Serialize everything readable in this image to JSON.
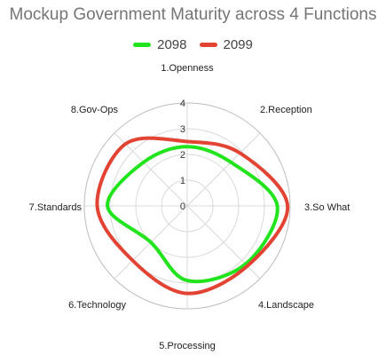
{
  "chart_data": {
    "type": "radar",
    "title": "Mockup Government Maturity across 4 Functions",
    "categories": [
      "1.Openness",
      "2.Reception",
      "3.So What",
      "4.Landscape",
      "5.Processing",
      "6.Technology",
      "7.Standards",
      "8.Gov-Ops"
    ],
    "rlim": [
      0,
      4
    ],
    "ticks": [
      "0",
      "1",
      "2",
      "3",
      "4"
    ],
    "grid": true,
    "legend_position": "top-center",
    "series": [
      {
        "name": "2098",
        "color": "#22e41e",
        "values": [
          2.3,
          2.4,
          3.5,
          3.2,
          2.9,
          2.0,
          3.1,
          2.4
        ]
      },
      {
        "name": "2099",
        "color": "#e24333",
        "values": [
          2.5,
          2.9,
          3.9,
          3.3,
          3.4,
          3.0,
          3.5,
          3.4
        ]
      }
    ]
  }
}
